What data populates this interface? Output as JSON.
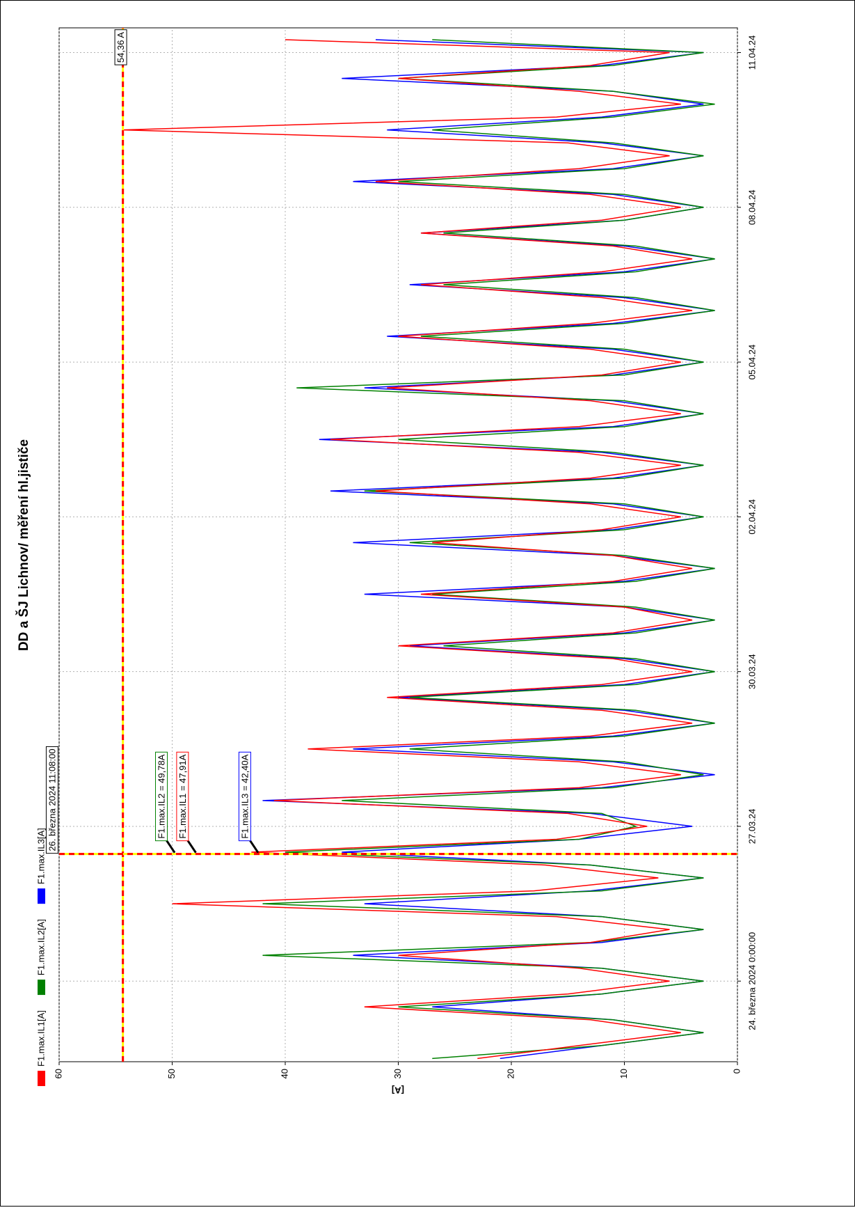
{
  "chart_data": {
    "type": "line",
    "title": "DD a ŠJ Lichnov/ měření hl.jističe",
    "ylabel": "[A]",
    "x": [
      "2024-03-22T12:00",
      "2024-03-22T18:00",
      "2024-03-23T00:00",
      "2024-03-23T06:00",
      "2024-03-23T12:00",
      "2024-03-23T18:00",
      "2024-03-24T00:00",
      "2024-03-24T06:00",
      "2024-03-24T12:00",
      "2024-03-24T18:00",
      "2024-03-25T00:00",
      "2024-03-25T06:00",
      "2024-03-25T12:00",
      "2024-03-25T18:00",
      "2024-03-26T00:00",
      "2024-03-26T06:00",
      "2024-03-26T12:00",
      "2024-03-26T18:00",
      "2024-03-27T00:00",
      "2024-03-27T06:00",
      "2024-03-27T12:00",
      "2024-03-27T18:00",
      "2024-03-28T00:00",
      "2024-03-28T06:00",
      "2024-03-28T12:00",
      "2024-03-28T18:00",
      "2024-03-29T00:00",
      "2024-03-29T06:00",
      "2024-03-29T12:00",
      "2024-03-29T18:00",
      "2024-03-30T00:00",
      "2024-03-30T06:00",
      "2024-03-30T12:00",
      "2024-03-30T18:00",
      "2024-03-31T00:00",
      "2024-03-31T06:00",
      "2024-03-31T12:00",
      "2024-03-31T18:00",
      "2024-04-01T00:00",
      "2024-04-01T06:00",
      "2024-04-01T12:00",
      "2024-04-01T18:00",
      "2024-04-02T00:00",
      "2024-04-02T06:00",
      "2024-04-02T12:00",
      "2024-04-02T18:00",
      "2024-04-03T00:00",
      "2024-04-03T06:00",
      "2024-04-03T12:00",
      "2024-04-03T18:00",
      "2024-04-04T00:00",
      "2024-04-04T06:00",
      "2024-04-04T12:00",
      "2024-04-04T18:00",
      "2024-04-05T00:00",
      "2024-04-05T06:00",
      "2024-04-05T12:00",
      "2024-04-05T18:00",
      "2024-04-06T00:00",
      "2024-04-06T06:00",
      "2024-04-06T12:00",
      "2024-04-06T18:00",
      "2024-04-07T00:00",
      "2024-04-07T06:00",
      "2024-04-07T12:00",
      "2024-04-07T18:00",
      "2024-04-08T00:00",
      "2024-04-08T06:00",
      "2024-04-08T12:00",
      "2024-04-08T18:00",
      "2024-04-09T00:00",
      "2024-04-09T06:00",
      "2024-04-09T12:00",
      "2024-04-09T18:00",
      "2024-04-10T00:00",
      "2024-04-10T06:00",
      "2024-04-10T12:00",
      "2024-04-10T18:00",
      "2024-04-11T00:00",
      "2024-04-11T06:00"
    ],
    "xlim": [
      "2024-03-22T10:30",
      "2024-04-11T11:30"
    ],
    "xticks": [
      {
        "value": "2024-03-24T00:00",
        "label": "24. března 2024 0:00:00"
      },
      {
        "value": "2024-03-27T00:00",
        "label": "27.03.24"
      },
      {
        "value": "2024-03-30T00:00",
        "label": "30.03.24"
      },
      {
        "value": "2024-04-02T00:00",
        "label": "02.04.24"
      },
      {
        "value": "2024-04-05T00:00",
        "label": "05.04.24"
      },
      {
        "value": "2024-04-08T00:00",
        "label": "08.04.24"
      },
      {
        "value": "2024-04-11T00:00",
        "label": "11.04.24"
      }
    ],
    "ylim": [
      0,
      60
    ],
    "yticks": [
      0,
      10,
      20,
      30,
      40,
      50,
      60
    ],
    "grid": true,
    "series": [
      {
        "name": "F1.max.IL1[A]",
        "color": "#ff0000",
        "values": [
          23,
          14,
          5,
          13,
          33,
          15,
          6,
          14,
          30,
          13,
          6,
          16,
          50,
          18,
          7,
          17,
          43,
          16,
          8,
          15,
          41,
          14,
          5,
          14,
          38,
          13,
          4,
          12,
          31,
          12,
          4,
          11,
          30,
          11,
          4,
          10,
          28,
          11,
          4,
          11,
          27,
          12,
          5,
          13,
          32,
          13,
          5,
          14,
          36,
          14,
          5,
          13,
          31,
          12,
          5,
          13,
          30,
          13,
          4,
          12,
          28,
          12,
          4,
          11,
          28,
          12,
          5,
          13,
          32,
          14,
          6,
          15,
          54.36,
          16,
          5,
          14,
          30,
          13,
          6,
          40
        ]
      },
      {
        "name": "F1.max.IL2[A]",
        "color": "#008000",
        "values": [
          27,
          12,
          3,
          11,
          30,
          12,
          3,
          12,
          42,
          13,
          3,
          12,
          42,
          12,
          3,
          13,
          40,
          14,
          9,
          12,
          35,
          11,
          3,
          10,
          29,
          10,
          2,
          9,
          29,
          9,
          2,
          9,
          26,
          9,
          2,
          9,
          27,
          9,
          2,
          10,
          29,
          10,
          3,
          10,
          33,
          10,
          3,
          11,
          30,
          10,
          3,
          10,
          39,
          10,
          3,
          10,
          28,
          10,
          2,
          9,
          26,
          9,
          2,
          9,
          26,
          10,
          3,
          10,
          30,
          10,
          3,
          11,
          27,
          11,
          2,
          11,
          30,
          11,
          3,
          27
        ]
      },
      {
        "name": "F1.max.IL3[A]",
        "color": "#0000ff",
        "values": [
          21,
          12,
          3,
          11,
          27,
          12,
          3,
          12,
          34,
          12,
          3,
          12,
          33,
          13,
          3,
          13,
          35,
          14,
          4,
          13,
          42,
          12,
          2,
          11,
          34,
          11,
          2,
          10,
          30,
          10,
          2,
          10,
          29,
          10,
          2,
          10,
          33,
          10,
          2,
          11,
          34,
          11,
          3,
          11,
          36,
          11,
          3,
          12,
          37,
          11,
          3,
          11,
          33,
          11,
          3,
          11,
          31,
          11,
          2,
          10,
          29,
          10,
          2,
          10,
          28,
          10,
          3,
          11,
          34,
          11,
          3,
          12,
          31,
          12,
          3,
          11,
          35,
          12,
          3,
          32
        ]
      }
    ],
    "threshold": {
      "value": 54.36,
      "label": "54,36 A"
    },
    "cursor": {
      "x": "2024-03-26T11:08",
      "label": "26. března 2024 11:08:00"
    },
    "cursor_readouts": [
      {
        "text": "F1.max.IL2 = 49,78A",
        "value": 49.78,
        "color": "#008000"
      },
      {
        "text": "F1.max.IL1 = 47,91A",
        "value": 47.91,
        "color": "#ff0000"
      },
      {
        "text": "F1.max.IL3 = 42,40A",
        "value": 42.4,
        "color": "#0000ff"
      }
    ]
  }
}
